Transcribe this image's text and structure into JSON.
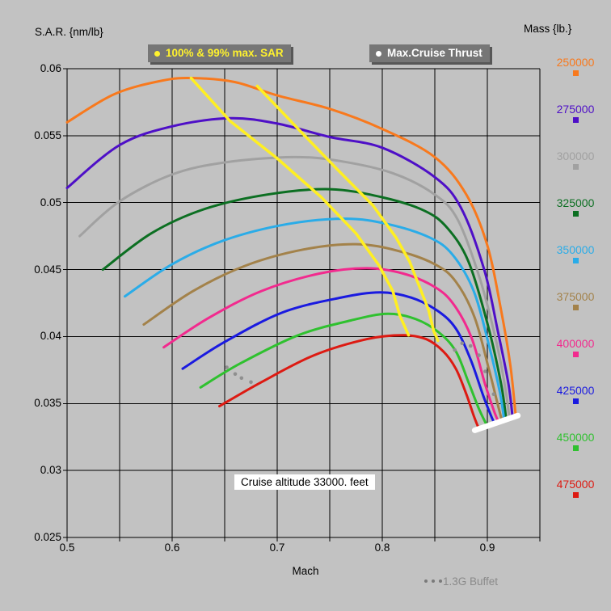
{
  "titles": {
    "y_axis": "S.A.R. {nm/lb}",
    "mass_column": "Mass {lb.}",
    "x_axis": "Mach"
  },
  "legends": {
    "max_sar": "100% & 99% max. SAR",
    "max_cruise_thrust": "Max.Cruise Thrust",
    "buffet": "1.3G Buffet"
  },
  "annotation": {
    "text": "Cruise altitude 33000. feet"
  },
  "colors": {
    "background": "#c2c2c2",
    "grid": "#000000",
    "yellow_locus": "#ffef22",
    "thrust_marker": "#ffffff",
    "buffet_dot": "#8f8f8f",
    "legend_box_bg": "#767676",
    "legend_box_shadow": "#575757",
    "legend_sar_text": "#fff22e",
    "legend_thrust_text": "#ffffff"
  },
  "chart_data": {
    "type": "line",
    "title": "Specific Air Range vs Mach for varying mass",
    "xlabel": "Mach",
    "ylabel": "S.A.R. {nm/lb}",
    "xlim": [
      0.5,
      0.95
    ],
    "ylim": [
      0.025,
      0.06
    ],
    "x_grid_step": 0.05,
    "y_grid_step": 0.005,
    "grid": "on",
    "x_ticks": [
      0.5,
      0.6,
      0.7,
      0.8,
      0.9
    ],
    "x_tick_labels": [
      "0.5",
      "0.6",
      "0.7",
      "0.8",
      "0.9"
    ],
    "y_ticks": [
      0.06,
      0.055,
      0.05,
      0.045,
      0.04,
      0.035,
      0.03,
      0.025
    ],
    "y_tick_labels": [
      "0.06",
      "0.055",
      "0.05",
      "0.045",
      "0.04",
      "0.035",
      "0.03",
      "0.025"
    ],
    "series": [
      {
        "name": "mass-250000",
        "label": "250000",
        "color": "#f8791d",
        "points": [
          [
            0.5,
            0.056
          ],
          [
            0.545,
            0.0581
          ],
          [
            0.59,
            0.0591
          ],
          [
            0.62,
            0.0593
          ],
          [
            0.66,
            0.059
          ],
          [
            0.7,
            0.058
          ],
          [
            0.75,
            0.057
          ],
          [
            0.8,
            0.0555
          ],
          [
            0.85,
            0.0534
          ],
          [
            0.88,
            0.0506
          ],
          [
            0.9,
            0.0468
          ],
          [
            0.913,
            0.042
          ],
          [
            0.922,
            0.0378
          ],
          [
            0.927,
            0.0341
          ]
        ]
      },
      {
        "name": "mass-275000",
        "label": "275000",
        "color": "#4e0fc7",
        "points": [
          [
            0.5,
            0.0511
          ],
          [
            0.55,
            0.0543
          ],
          [
            0.6,
            0.0557
          ],
          [
            0.655,
            0.0563
          ],
          [
            0.7,
            0.0559
          ],
          [
            0.75,
            0.0549
          ],
          [
            0.8,
            0.0541
          ],
          [
            0.85,
            0.0519
          ],
          [
            0.875,
            0.0496
          ],
          [
            0.897,
            0.045
          ],
          [
            0.91,
            0.0404
          ],
          [
            0.92,
            0.0365
          ],
          [
            0.924,
            0.034
          ]
        ]
      },
      {
        "name": "mass-300000",
        "label": "300000",
        "color": "#a1a1a1",
        "points": [
          [
            0.512,
            0.0475
          ],
          [
            0.55,
            0.0501
          ],
          [
            0.6,
            0.0521
          ],
          [
            0.65,
            0.053
          ],
          [
            0.715,
            0.0534
          ],
          [
            0.76,
            0.0531
          ],
          [
            0.81,
            0.0522
          ],
          [
            0.85,
            0.0506
          ],
          [
            0.872,
            0.0487
          ],
          [
            0.893,
            0.0443
          ],
          [
            0.908,
            0.0398
          ],
          [
            0.917,
            0.0362
          ],
          [
            0.921,
            0.0339
          ]
        ]
      },
      {
        "name": "mass-325000",
        "label": "325000",
        "color": "#0c6f22",
        "points": [
          [
            0.534,
            0.045
          ],
          [
            0.58,
            0.0477
          ],
          [
            0.63,
            0.0495
          ],
          [
            0.69,
            0.0506
          ],
          [
            0.75,
            0.051
          ],
          [
            0.8,
            0.0504
          ],
          [
            0.84,
            0.0494
          ],
          [
            0.862,
            0.0481
          ],
          [
            0.882,
            0.0456
          ],
          [
            0.9,
            0.041
          ],
          [
            0.913,
            0.0365
          ],
          [
            0.918,
            0.0338
          ]
        ]
      },
      {
        "name": "mass-350000",
        "label": "350000",
        "color": "#2aace8",
        "points": [
          [
            0.555,
            0.043
          ],
          [
            0.6,
            0.0454
          ],
          [
            0.65,
            0.0472
          ],
          [
            0.71,
            0.0484
          ],
          [
            0.765,
            0.0488
          ],
          [
            0.805,
            0.0484
          ],
          [
            0.845,
            0.0474
          ],
          [
            0.867,
            0.0461
          ],
          [
            0.887,
            0.0434
          ],
          [
            0.902,
            0.0392
          ],
          [
            0.912,
            0.0358
          ],
          [
            0.916,
            0.0338
          ]
        ]
      },
      {
        "name": "mass-375000",
        "label": "375000",
        "color": "#a3824a",
        "points": [
          [
            0.573,
            0.0409
          ],
          [
            0.62,
            0.0434
          ],
          [
            0.67,
            0.0453
          ],
          [
            0.725,
            0.0465
          ],
          [
            0.775,
            0.0469
          ],
          [
            0.815,
            0.0464
          ],
          [
            0.85,
            0.0454
          ],
          [
            0.87,
            0.0441
          ],
          [
            0.888,
            0.0414
          ],
          [
            0.902,
            0.0374
          ],
          [
            0.91,
            0.0349
          ],
          [
            0.914,
            0.0337
          ]
        ]
      },
      {
        "name": "mass-400000",
        "label": "400000",
        "color": "#f22a8e",
        "points": [
          [
            0.592,
            0.0392
          ],
          [
            0.635,
            0.0414
          ],
          [
            0.685,
            0.0434
          ],
          [
            0.74,
            0.0447
          ],
          [
            0.785,
            0.0451
          ],
          [
            0.82,
            0.0447
          ],
          [
            0.85,
            0.0437
          ],
          [
            0.868,
            0.0424
          ],
          [
            0.885,
            0.0399
          ],
          [
            0.898,
            0.0364
          ],
          [
            0.907,
            0.0343
          ],
          [
            0.911,
            0.0336
          ]
        ]
      },
      {
        "name": "mass-425000",
        "label": "425000",
        "color": "#1a1ae0",
        "points": [
          [
            0.61,
            0.0376
          ],
          [
            0.65,
            0.0396
          ],
          [
            0.705,
            0.0418
          ],
          [
            0.76,
            0.0429
          ],
          [
            0.798,
            0.0433
          ],
          [
            0.828,
            0.0429
          ],
          [
            0.853,
            0.0419
          ],
          [
            0.87,
            0.0406
          ],
          [
            0.884,
            0.0383
          ],
          [
            0.896,
            0.0356
          ],
          [
            0.904,
            0.034
          ],
          [
            0.907,
            0.0335
          ]
        ]
      },
      {
        "name": "mass-450000",
        "label": "450000",
        "color": "#2fc12f",
        "points": [
          [
            0.627,
            0.0362
          ],
          [
            0.665,
            0.038
          ],
          [
            0.72,
            0.0401
          ],
          [
            0.77,
            0.0412
          ],
          [
            0.805,
            0.0417
          ],
          [
            0.832,
            0.0413
          ],
          [
            0.854,
            0.0403
          ],
          [
            0.87,
            0.0389
          ],
          [
            0.882,
            0.0366
          ],
          [
            0.892,
            0.0346
          ],
          [
            0.9,
            0.0333
          ]
        ]
      },
      {
        "name": "mass-475000",
        "label": "475000",
        "color": "#dd1a12",
        "points": [
          [
            0.645,
            0.0348
          ],
          [
            0.685,
            0.0366
          ],
          [
            0.735,
            0.0386
          ],
          [
            0.785,
            0.0398
          ],
          [
            0.82,
            0.0401
          ],
          [
            0.842,
            0.0398
          ],
          [
            0.858,
            0.0389
          ],
          [
            0.87,
            0.0376
          ],
          [
            0.88,
            0.0357
          ],
          [
            0.887,
            0.0341
          ],
          [
            0.892,
            0.0331
          ]
        ]
      }
    ],
    "sar_loci": {
      "color": "#ffef22",
      "lines": [
        {
          "name": "100% max SAR",
          "points": [
            [
              0.618,
              0.0593
            ],
            [
              0.655,
              0.0561
            ],
            [
              0.7,
              0.0533
            ],
            [
              0.742,
              0.0504
            ],
            [
              0.775,
              0.0477
            ],
            [
              0.797,
              0.0453
            ],
            [
              0.81,
              0.0434
            ],
            [
              0.8165,
              0.0416
            ],
            [
              0.825,
              0.0401
            ]
          ]
        },
        {
          "name": "99% max SAR",
          "points": [
            [
              0.681,
              0.0587
            ],
            [
              0.72,
              0.0555
            ],
            [
              0.757,
              0.0525
            ],
            [
              0.791,
              0.0498
            ],
            [
              0.813,
              0.0474
            ],
            [
              0.826,
              0.0456
            ],
            [
              0.835,
              0.0438
            ],
            [
              0.844,
              0.042
            ],
            [
              0.849,
              0.0404
            ],
            [
              0.853,
              0.0397
            ]
          ]
        }
      ]
    },
    "max_cruise_thrust_line": {
      "color": "#ffffff",
      "points": [
        [
          0.888,
          0.033
        ],
        [
          0.929,
          0.0341
        ]
      ]
    },
    "buffet_dots": {
      "color": "#8f8f8f",
      "points": [
        [
          0.652,
          0.0377
        ],
        [
          0.66,
          0.0372
        ],
        [
          0.666,
          0.0369
        ],
        [
          0.675,
          0.0366
        ],
        [
          0.869,
          0.039
        ],
        [
          0.876,
          0.0395
        ],
        [
          0.884,
          0.0393
        ],
        [
          0.892,
          0.0386
        ],
        [
          0.898,
          0.0374
        ],
        [
          0.906,
          0.0357
        ]
      ]
    }
  },
  "mass_legend": {
    "entries": [
      {
        "label": "250000",
        "color": "#f8791d"
      },
      {
        "label": "275000",
        "color": "#4e0fc7"
      },
      {
        "label": "300000",
        "color": "#a1a1a1"
      },
      {
        "label": "325000",
        "color": "#0c6f22"
      },
      {
        "label": "350000",
        "color": "#2aace8"
      },
      {
        "label": "375000",
        "color": "#a3824a"
      },
      {
        "label": "400000",
        "color": "#f22a8e"
      },
      {
        "label": "425000",
        "color": "#1a1ae0"
      },
      {
        "label": "450000",
        "color": "#2fc12f"
      },
      {
        "label": "475000",
        "color": "#dd1a12"
      }
    ]
  }
}
